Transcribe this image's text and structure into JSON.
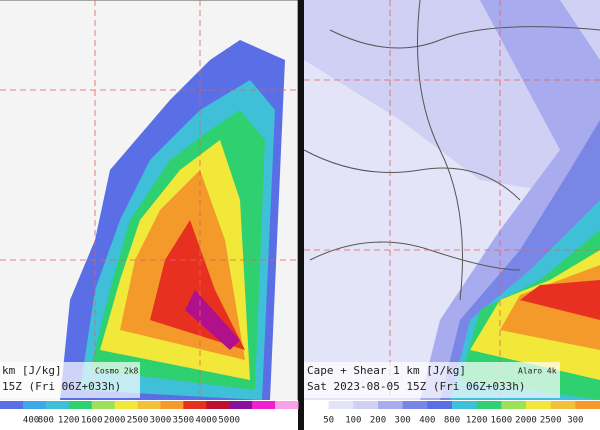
{
  "left_panel": {
    "title": "km  [J/kg]",
    "model": "Cosmo 2k8",
    "time": "15Z (Fri 06Z+033h)",
    "colorbar": [
      "400",
      "800",
      "1200",
      "1600",
      "2000",
      "2500",
      "3000",
      "3500",
      "4000",
      "5000"
    ]
  },
  "right_panel": {
    "title": "Cape + Shear 1 km  [J/kg]",
    "model": "Alaro 4k",
    "time": "Sat 2023-08-05 15Z (Fri 06Z+033h)",
    "colorbar": [
      "50",
      "100",
      "200",
      "300",
      "400",
      "800",
      "1200",
      "1600",
      "2000",
      "2500",
      "300"
    ]
  }
}
